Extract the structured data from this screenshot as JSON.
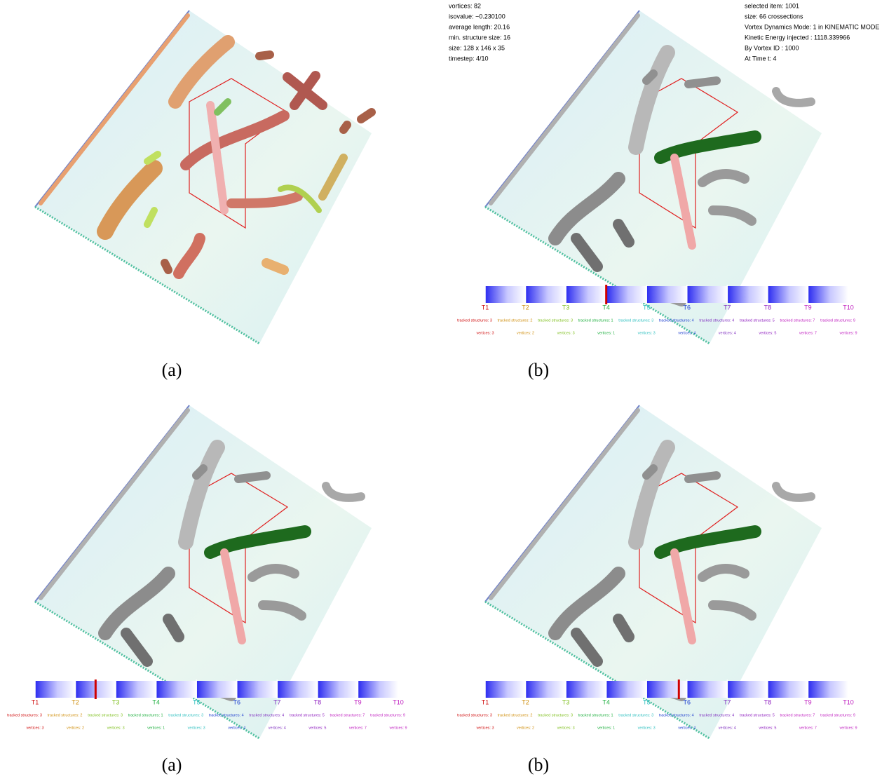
{
  "panels": [
    {
      "caption": "(a)"
    },
    {
      "caption": "(b)",
      "info_left": [
        "vortices: 82",
        "isovalue: −0.230100",
        "average length: 20.16",
        "min. structure size: 16",
        "size: 128 x 146 x 35",
        "timestep: 4/10"
      ],
      "info_right": [
        "selected item: 1001",
        "size: 66 crossections",
        "Vortex Dynamics Mode: 1 in KINEMATIC MODE",
        "Kinetic Energy injected : 1118.339966",
        "By Vortex ID : 1000",
        "At Time t: 4"
      ]
    },
    {
      "caption": "(a)"
    },
    {
      "caption": "(b)"
    }
  ],
  "timeline": {
    "ticks": [
      "T1",
      "T2",
      "T3",
      "T4",
      "T5",
      "T6",
      "T7",
      "T8",
      "T9",
      "T10"
    ],
    "tick_colors": [
      "#d01010",
      "#d09010",
      "#80c020",
      "#20b040",
      "#30c0c0",
      "#2040d0",
      "#8030c0",
      "#9020c0",
      "#c020c0",
      "#c020c0"
    ],
    "tracked": [
      "tracked structures: 3",
      "tracked structures: 2",
      "tracked structures: 3",
      "tracked structures: 1",
      "tracked structures: 3",
      "tracked structures: 4",
      "tracked structures: 4",
      "tracked structures: 5",
      "tracked structures: 7",
      "tracked structures: 9"
    ],
    "vertices": [
      "vertices: 3",
      "vertices: 2",
      "vertices: 3",
      "vertices: 1",
      "vertices: 3",
      "vertices: 4",
      "vertices: 4",
      "vertices: 5",
      "vertices: 7",
      "vertices: 9"
    ]
  }
}
